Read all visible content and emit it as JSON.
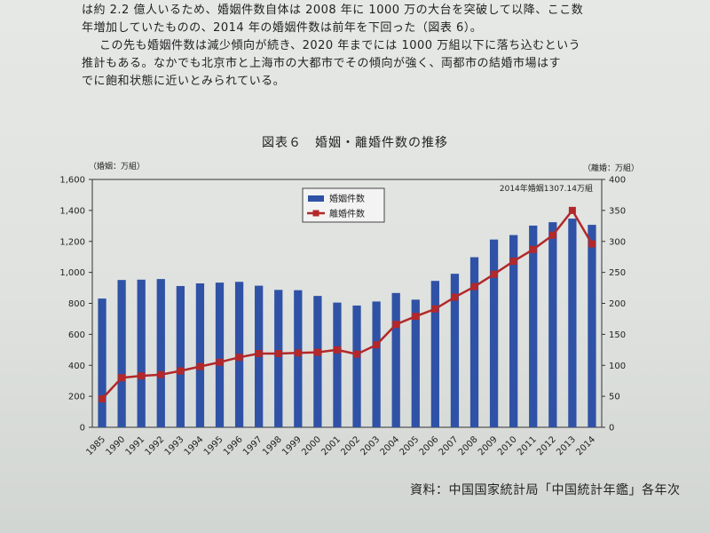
{
  "text": {
    "line1": "は約 2.2 億人いるため、婚姻件数自体は 2008 年に 1000 万の大台を突破して以降、ここ数",
    "line2": "年増加していたものの、2014 年の婚姻件数は前年を下回った（図表 6）。",
    "line3": "この先も婚姻件数は減少傾向が続き、2020 年までには 1000 万組以下に落ち込むという",
    "line4": "推計もある。なかでも北京市と上海市の大都市でその傾向が強く、両都市の結婚市場はす",
    "line5": "でに飽和状態に近いとみられている。"
  },
  "figure_title": "図表６　婚姻・離婚件数の推移",
  "source": "資料：中国国家統計局「中国統計年鑑」各年次",
  "chart_data": {
    "type": "bar+line",
    "categories": [
      "1985",
      "1990",
      "1991",
      "1992",
      "1993",
      "1994",
      "1995",
      "1996",
      "1997",
      "1998",
      "1999",
      "2000",
      "2001",
      "2002",
      "2003",
      "2004",
      "2005",
      "2006",
      "2007",
      "2008",
      "2009",
      "2010",
      "2011",
      "2012",
      "2013",
      "2014"
    ],
    "series": [
      {
        "name": "婚姻件数",
        "type": "bar",
        "axis": "left",
        "values": [
          831,
          951,
          953,
          957,
          912,
          929,
          934,
          939,
          914,
          887,
          885,
          848,
          805,
          786,
          812,
          867,
          824,
          945,
          991,
          1098,
          1212,
          1241,
          1302,
          1324,
          1347,
          1307
        ]
      },
      {
        "name": "離婚件数",
        "type": "line",
        "axis": "right",
        "values": [
          46,
          80,
          83,
          85,
          91,
          98,
          105,
          113,
          119,
          119,
          120,
          121,
          125,
          118,
          133,
          166,
          179,
          191,
          210,
          227,
          247,
          268,
          287,
          310,
          350,
          296
        ]
      }
    ],
    "left_axis": {
      "label": "（婚姻：万組）",
      "min": 0,
      "max": 1600,
      "ticks": [
        0,
        200,
        400,
        600,
        800,
        1000,
        1200,
        1400,
        1600
      ],
      "tick_labels": [
        "0",
        "200",
        "400",
        "600",
        "800",
        "1,000",
        "1,200",
        "1,400",
        "1,600"
      ]
    },
    "right_axis": {
      "label": "（離婚：万組）",
      "min": 0,
      "max": 400,
      "ticks": [
        0,
        50,
        100,
        150,
        200,
        250,
        300,
        350,
        400
      ],
      "tick_labels": [
        "0",
        "50",
        "100",
        "150",
        "200",
        "250",
        "300",
        "350",
        "400"
      ]
    },
    "annotation": "2014年婚姻1307.14万組",
    "legend": "top-center",
    "grid": false,
    "colors": {
      "bar": "#2f52a6",
      "line": "#b3282a"
    }
  }
}
